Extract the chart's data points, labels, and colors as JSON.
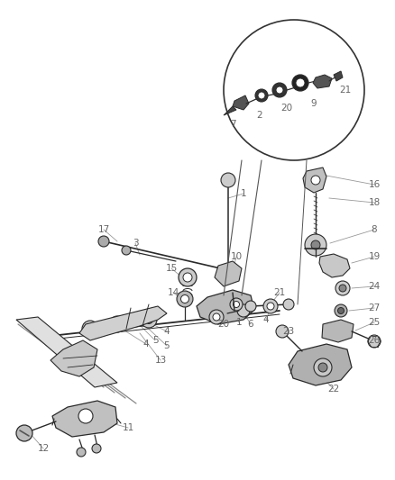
{
  "background_color": "#ffffff",
  "fig_width": 4.38,
  "fig_height": 5.33,
  "dpi": 100,
  "parts_color": "#2a2a2a",
  "label_color": "#666666",
  "leader_color": "#999999",
  "label_fontsize": 7.5
}
